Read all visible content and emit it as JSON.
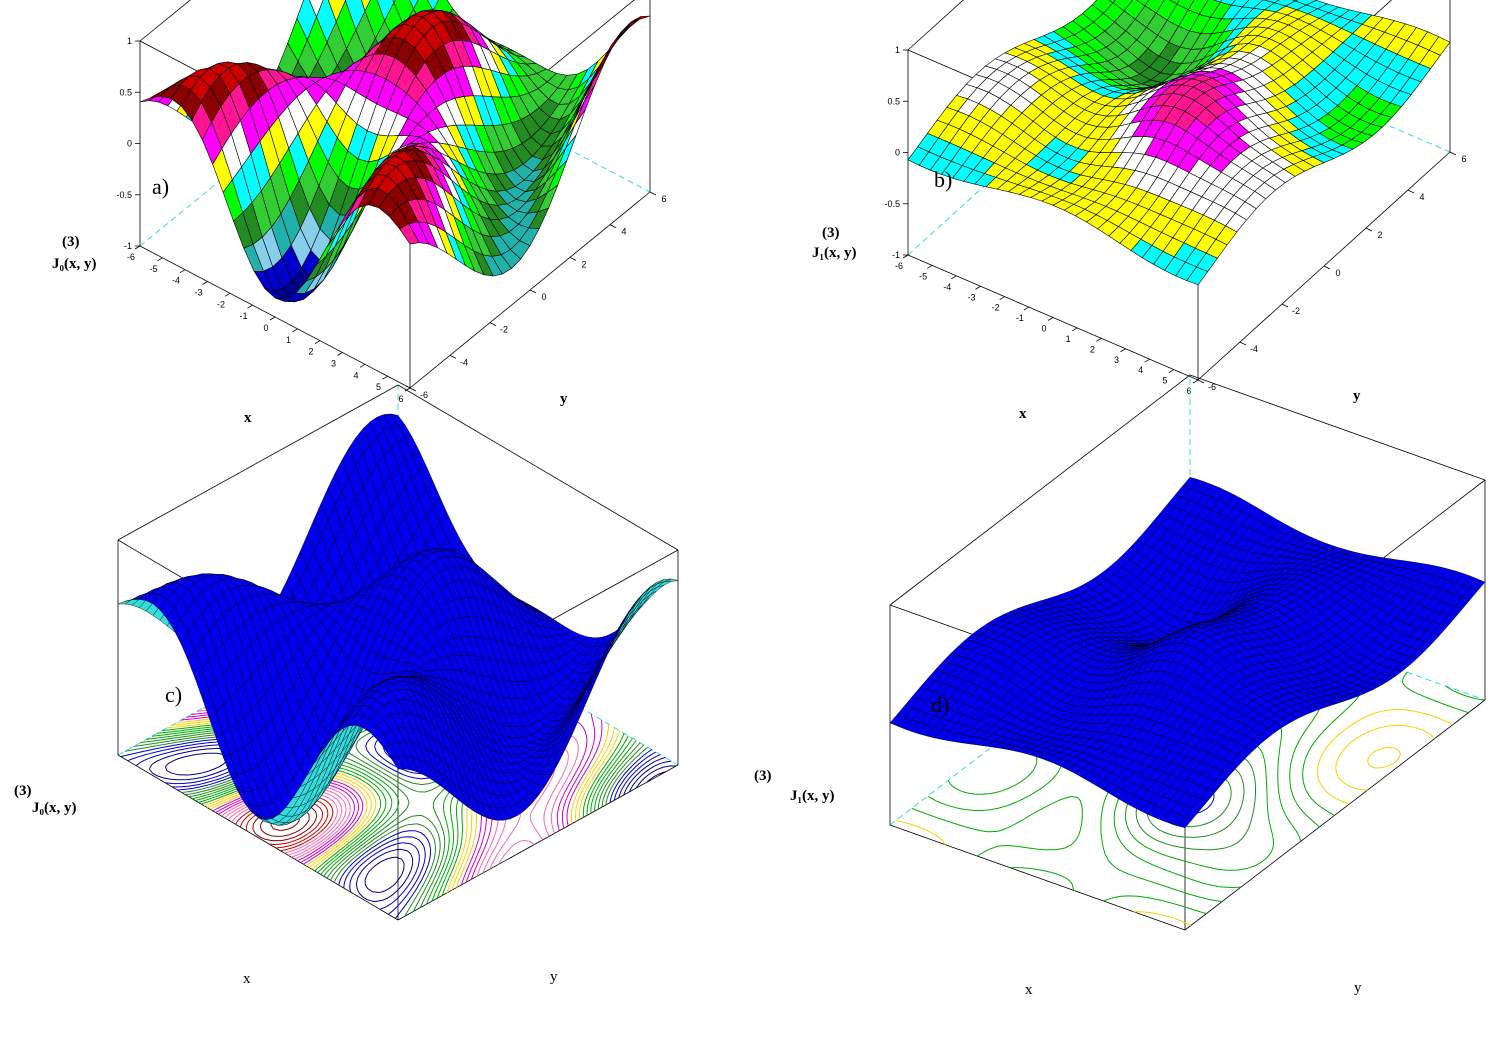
{
  "chart_data": [
    {
      "panel": "a)",
      "type": "surface3d",
      "style": "lego-colored",
      "zlabel_super": "(3)",
      "zlabel": "J₀(x, y)",
      "xlabel": "x",
      "ylabel": "y",
      "xlim": [
        -6,
        6
      ],
      "ylim": [
        -6,
        6
      ],
      "zlim": [
        -1,
        1
      ],
      "x_ticks": [
        "-6",
        "-5",
        "-4",
        "-3",
        "-2",
        "-1",
        "0",
        "1",
        "2",
        "3",
        "4",
        "5",
        "6"
      ],
      "y_ticks": [
        "-6",
        "-4",
        "-2",
        "0",
        "2",
        "4",
        "6"
      ],
      "z_ticks": [
        "-1",
        "-0.5",
        "0",
        "0.5",
        "1"
      ],
      "function": "(3)J0",
      "grid_points": 26
    },
    {
      "panel": "b)",
      "type": "surface3d",
      "style": "lego-colored",
      "zlabel_super": "(3)",
      "zlabel": "J₁(x, y)",
      "xlabel": "x",
      "ylabel": "y",
      "xlim": [
        -6,
        6
      ],
      "ylim": [
        -6,
        6
      ],
      "zlim": [
        -1,
        1
      ],
      "x_ticks": [
        "-6",
        "-5",
        "-4",
        "-3",
        "-2",
        "-1",
        "0",
        "1",
        "2",
        "3",
        "4",
        "5",
        "6"
      ],
      "y_ticks": [
        "-6",
        "-4",
        "-2",
        "0",
        "2",
        "4",
        "6"
      ],
      "z_ticks": [
        "-1",
        "-0.5",
        "0",
        "0.5",
        "1"
      ],
      "function": "(3)J1",
      "grid_points": 26
    },
    {
      "panel": "c)",
      "type": "surface3d",
      "style": "mesh-with-contour",
      "zlabel_super": "(3)",
      "zlabel": "J₀(x, y)",
      "xlabel": "x",
      "ylabel": "y",
      "xlim": [
        -6,
        6
      ],
      "ylim": [
        -6,
        6
      ],
      "zlim": [
        -1,
        1
      ],
      "function": "(3)J0",
      "grid_points": 40,
      "surface_color": "#0000ee",
      "underside_color": "#33dddd"
    },
    {
      "panel": "d)",
      "type": "surface3d",
      "style": "mesh-with-contour",
      "zlabel_super": "(3)",
      "zlabel": "J₁(x, y)",
      "xlabel": "x",
      "ylabel": "y",
      "xlim": [
        -6,
        6
      ],
      "ylim": [
        -6,
        6
      ],
      "zlim": [
        -1,
        1
      ],
      "function": "(3)J1",
      "grid_points": 40,
      "surface_color": "#0000ee",
      "underside_color": "#33dddd"
    }
  ],
  "palette": [
    "#00008b",
    "#0000cd",
    "#87ceeb",
    "#20b2aa",
    "#228b22",
    "#32cd32",
    "#00ff00",
    "#ffff00",
    "#ff00ff",
    "#ff1493",
    "#8b0000",
    "#cc0000",
    "#a0522d",
    "#ffb6c1",
    "#ffffff",
    "#00ffff"
  ],
  "contour_colors": [
    "#7f0000",
    "#cc0000",
    "#ff66aa",
    "#cc00cc",
    "#ffcc00",
    "#00aa00",
    "#228b22",
    "#0000cc",
    "#000088",
    "#00aaaa"
  ]
}
